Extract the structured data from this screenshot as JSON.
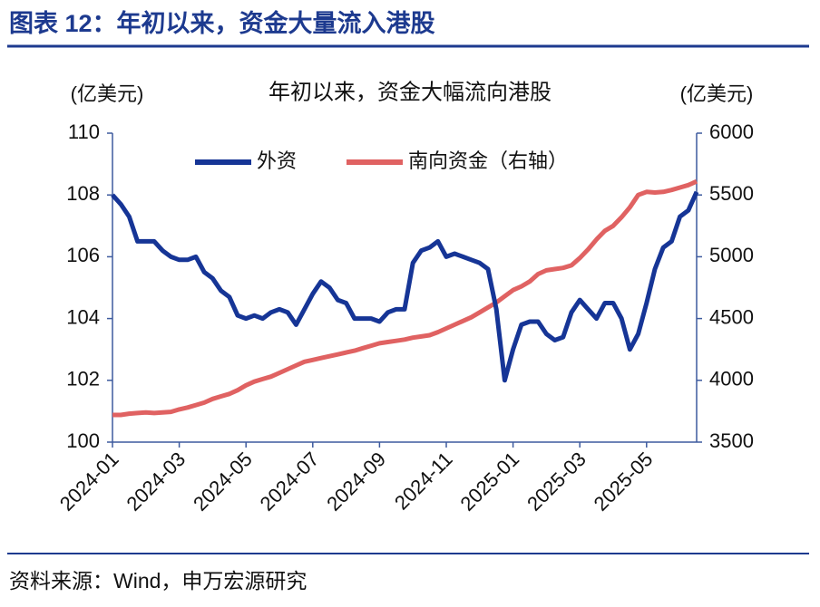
{
  "header": {
    "title": "图表 12：年初以来，资金大量流入港股"
  },
  "chart_data": {
    "type": "line",
    "title": "年初以来，资金大幅流向港股",
    "y_label": "(亿美元)",
    "y2_label": "(亿美元)",
    "categories": [
      "2024-01",
      null,
      null,
      null,
      null,
      null,
      null,
      null,
      "2024-03",
      null,
      null,
      null,
      null,
      null,
      null,
      null,
      "2024-05",
      null,
      null,
      null,
      null,
      null,
      null,
      null,
      "2024-07",
      null,
      null,
      null,
      null,
      null,
      null,
      null,
      "2024-09",
      null,
      null,
      null,
      null,
      null,
      null,
      null,
      "2024-11",
      null,
      null,
      null,
      null,
      null,
      null,
      null,
      "2025-01",
      null,
      null,
      null,
      null,
      null,
      null,
      null,
      "2025-03",
      null,
      null,
      null,
      null,
      null,
      null,
      null,
      "2025-05",
      null,
      null,
      null,
      null,
      null,
      null
    ],
    "series": [
      {
        "name": "外资",
        "color": "#163596",
        "axis": "y",
        "values": [
          108.0,
          107.7,
          107.3,
          106.5,
          106.5,
          106.5,
          106.2,
          106.0,
          105.9,
          105.9,
          106.0,
          105.5,
          105.3,
          104.9,
          104.7,
          104.1,
          104.0,
          104.1,
          104.0,
          104.2,
          104.3,
          104.2,
          103.8,
          104.3,
          104.8,
          105.2,
          105.0,
          104.6,
          104.5,
          104.0,
          104.0,
          104.0,
          103.9,
          104.2,
          104.3,
          104.3,
          105.8,
          106.2,
          106.3,
          106.5,
          106.0,
          106.1,
          106.0,
          105.9,
          105.8,
          105.6,
          104.3,
          102.0,
          103.0,
          103.8,
          103.9,
          103.9,
          103.5,
          103.3,
          103.4,
          104.2,
          104.6,
          104.3,
          104.0,
          104.5,
          104.5,
          104.0,
          103.0,
          103.5,
          104.5,
          105.6,
          106.3,
          106.5,
          107.3,
          107.5,
          108.1
        ]
      },
      {
        "name": "南向资金（右轴）",
        "color": "#e06262",
        "axis": "y2",
        "values": [
          3720,
          3720,
          3730,
          3735,
          3740,
          3735,
          3740,
          3745,
          3765,
          3780,
          3800,
          3820,
          3850,
          3870,
          3890,
          3920,
          3960,
          3990,
          4010,
          4030,
          4060,
          4090,
          4120,
          4150,
          4165,
          4180,
          4195,
          4210,
          4225,
          4240,
          4260,
          4280,
          4300,
          4310,
          4320,
          4330,
          4345,
          4355,
          4365,
          4390,
          4420,
          4450,
          4480,
          4510,
          4550,
          4590,
          4630,
          4680,
          4730,
          4760,
          4800,
          4860,
          4890,
          4900,
          4910,
          4930,
          4990,
          5060,
          5140,
          5210,
          5250,
          5320,
          5400,
          5500,
          5525,
          5520,
          5525,
          5540,
          5560,
          5580,
          5610
        ]
      }
    ],
    "ylim": [
      100,
      110
    ],
    "yticks": [
      100,
      102,
      104,
      106,
      108,
      110
    ],
    "y2lim": [
      3500,
      6000
    ],
    "y2ticks": [
      3500,
      4000,
      4500,
      5000,
      5500,
      6000
    ]
  },
  "footer": {
    "source": "资料来源：Wind，申万宏源研究"
  }
}
